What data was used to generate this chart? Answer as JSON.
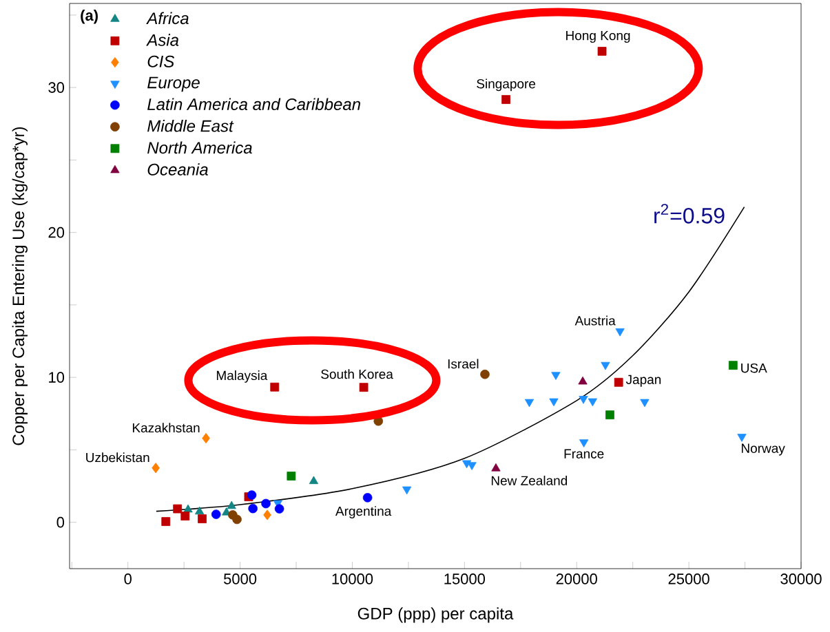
{
  "chart_data": {
    "type": "scatter",
    "xlabel": "GDP (ppp) per capita",
    "ylabel": "Copper per Capita Entering Use (kg/cap*yr)",
    "xlim": [
      -2600,
      30000
    ],
    "ylim": [
      -3.2,
      35.8
    ],
    "xticks": [
      {
        "value": -2500,
        "label": null
      },
      0,
      {
        "value": 2500,
        "label": null
      },
      5000,
      {
        "value": 7500,
        "label": null
      },
      10000,
      {
        "value": 12500,
        "label": null
      },
      15000,
      {
        "value": 17500,
        "label": null
      },
      20000,
      {
        "value": 22500,
        "label": null
      },
      25000,
      {
        "value": 27500,
        "label": null
      },
      30000
    ],
    "yticks": [
      0,
      {
        "value": 5,
        "label": null
      },
      10,
      {
        "value": 15,
        "label": null
      },
      20,
      {
        "value": 25,
        "label": null
      },
      30,
      {
        "value": 35,
        "label": null
      }
    ],
    "legend": "top left",
    "series": [
      {
        "name": "Africa",
        "color": "#138585",
        "marker": "triangle",
        "x": [
          2680,
          3190,
          4620,
          4390,
          8280
        ],
        "values": [
          0.87,
          0.73,
          1.11,
          0.67,
          2.83
        ]
      },
      {
        "name": "Asia",
        "color": "#c00000",
        "marker": "square",
        "x": [
          6540,
          10510,
          5380,
          2210,
          2550,
          1690,
          3310,
          21870,
          21130,
          16850
        ],
        "values": [
          9.33,
          9.31,
          1.76,
          0.93,
          0.43,
          0.05,
          0.24,
          9.66,
          32.5,
          29.17
        ]
      },
      {
        "name": "CIS",
        "color": "#ff8000",
        "marker": "diamond",
        "x": [
          3480,
          1240,
          6210
        ],
        "values": [
          5.8,
          3.75,
          0.51
        ]
      },
      {
        "name": "Europe",
        "color": "#1e90ff",
        "marker": "triangle-down",
        "x": [
          21930,
          21280,
          19070,
          17890,
          18980,
          20300,
          20710,
          23030,
          20320,
          27360,
          15100,
          15330,
          12430,
          6680
        ],
        "values": [
          13.19,
          10.87,
          10.18,
          8.31,
          8.36,
          8.53,
          8.36,
          8.31,
          5.53,
          5.91,
          4.09,
          3.96,
          2.28,
          1.33
        ]
      },
      {
        "name": "Latin America and Caribbean",
        "color": "#0000ff",
        "marker": "circle",
        "x": [
          3930,
          5520,
          5570,
          6150,
          6750,
          10680
        ],
        "values": [
          0.55,
          1.88,
          0.95,
          1.29,
          0.93,
          1.7
        ]
      },
      {
        "name": "Middle East",
        "color": "#804000",
        "marker": "circle",
        "x": [
          4670,
          4860,
          11160,
          15910
        ],
        "values": [
          0.51,
          0.2,
          6.98,
          10.21
        ]
      },
      {
        "name": "North America",
        "color": "#008000",
        "marker": "square",
        "x": [
          7280,
          21480,
          26970
        ],
        "values": [
          3.19,
          7.41,
          10.83
        ]
      },
      {
        "name": "Oceania",
        "color": "#800040",
        "marker": "triangle",
        "x": [
          20270,
          16400
        ],
        "values": [
          9.7,
          3.71
        ]
      },
      {
        "type": "line",
        "color": "#000000",
        "marker": "none",
        "x": [
          1265,
          5000,
          10000,
          15000,
          20000,
          22500,
          25000,
          27470
        ],
        "values": [
          0.76,
          1.22,
          2.32,
          4.41,
          8.4,
          11.5,
          15.9,
          21.76
        ]
      }
    ],
    "annotations": [
      {
        "text": "Hong Kong",
        "x": 21130,
        "y": 32.5
      },
      {
        "text": "Singapore",
        "x": 16850,
        "y": 29.17
      },
      {
        "text": "Malaysia",
        "x": 6540,
        "y": 9.33
      },
      {
        "text": "South Korea",
        "x": 10510,
        "y": 9.31
      },
      {
        "text": "Kazakhstan",
        "x": 3480,
        "y": 5.8
      },
      {
        "text": "Uzbekistan",
        "x": 1240,
        "y": 3.75
      },
      {
        "text": "Israel",
        "x": 15910,
        "y": 10.21
      },
      {
        "text": "Austria",
        "x": 21930,
        "y": 13.19
      },
      {
        "text": "Japan",
        "x": 21870,
        "y": 9.66
      },
      {
        "text": "USA",
        "x": 26970,
        "y": 10.83
      },
      {
        "text": "France",
        "x": 20320,
        "y": 5.53
      },
      {
        "text": "Norway",
        "x": 27360,
        "y": 5.91
      },
      {
        "text": "New Zealand",
        "x": 16400,
        "y": 3.71
      },
      {
        "text": "Argentina",
        "x": 10680,
        "y": 1.7
      },
      "(a)",
      "r$^{2}$=0.59"
    ]
  }
}
